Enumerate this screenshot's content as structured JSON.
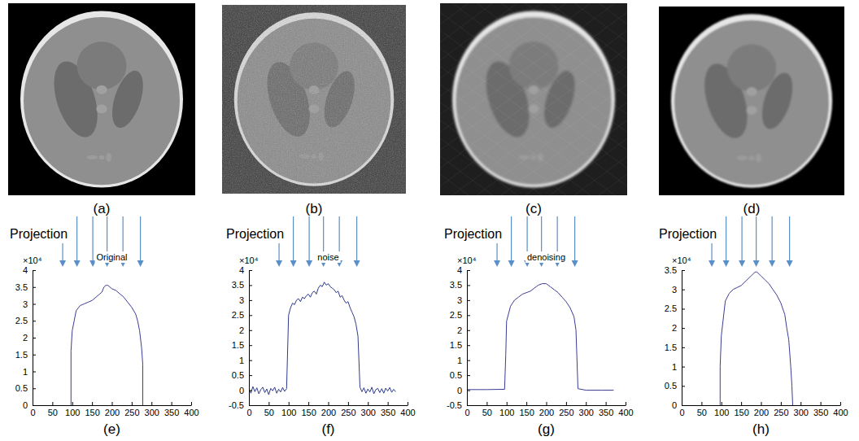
{
  "images": [
    {
      "label": "(a)"
    },
    {
      "label": "(b)"
    },
    {
      "label": "(c)"
    },
    {
      "label": "(d)"
    }
  ],
  "chart_data": [
    {
      "type": "line",
      "title": "Original",
      "caption": "(e)",
      "annotations": [
        "Projection",
        "×10⁴"
      ],
      "x": [
        97,
        97,
        100,
        110,
        120,
        130,
        140,
        150,
        160,
        170,
        175,
        180,
        185,
        190,
        195,
        200,
        210,
        220,
        230,
        240,
        250,
        260,
        265,
        270,
        275,
        278,
        278
      ],
      "values": [
        0,
        1.6,
        2.2,
        2.8,
        2.95,
        3.0,
        3.05,
        3.1,
        3.2,
        3.3,
        3.35,
        3.5,
        3.55,
        3.55,
        3.5,
        3.45,
        3.4,
        3.3,
        3.2,
        3.05,
        2.9,
        2.7,
        2.5,
        2.2,
        1.7,
        1.2,
        0
      ],
      "color": "#3c3c96",
      "xlim": [
        0,
        400
      ],
      "xticks": [
        0,
        50,
        100,
        150,
        200,
        250,
        300,
        350,
        400
      ],
      "ylim": [
        0,
        4
      ],
      "yticks": [
        0,
        0.5,
        1,
        1.5,
        2,
        2.5,
        3,
        3.5,
        4
      ]
    },
    {
      "type": "line",
      "title": "noise",
      "caption": "(f)",
      "annotations": [
        "Projection",
        "×10⁴"
      ],
      "x": [
        0,
        5,
        10,
        15,
        20,
        25,
        30,
        35,
        40,
        45,
        50,
        55,
        60,
        65,
        70,
        75,
        80,
        85,
        90,
        95,
        100,
        105,
        110,
        115,
        120,
        125,
        130,
        135,
        140,
        145,
        150,
        155,
        160,
        165,
        170,
        175,
        180,
        185,
        190,
        195,
        200,
        205,
        210,
        215,
        220,
        225,
        230,
        235,
        240,
        245,
        250,
        255,
        260,
        265,
        270,
        275,
        280,
        285,
        290,
        295,
        300,
        305,
        310,
        315,
        320,
        325,
        330,
        335,
        340,
        345,
        350,
        355,
        360,
        365,
        370
      ],
      "values": [
        0.05,
        -0.1,
        0.12,
        -0.05,
        0.08,
        -0.12,
        0.02,
        0.1,
        -0.08,
        0.04,
        -0.15,
        0.06,
        -0.02,
        0.1,
        -0.1,
        0.03,
        -0.06,
        0.09,
        -0.04,
        0.05,
        2.5,
        2.75,
        2.9,
        2.85,
        3.0,
        3.05,
        2.95,
        3.1,
        3.05,
        3.15,
        3.2,
        3.1,
        3.25,
        3.3,
        3.2,
        3.4,
        3.5,
        3.45,
        3.6,
        3.5,
        3.55,
        3.45,
        3.4,
        3.35,
        3.25,
        3.3,
        3.1,
        3.15,
        3.0,
        2.9,
        2.95,
        2.75,
        2.6,
        2.45,
        2.2,
        1.8,
        0.1,
        -0.05,
        0.08,
        -0.1,
        0.04,
        -0.06,
        0.1,
        -0.12,
        0.02,
        0.06,
        -0.08,
        0.05,
        -0.1,
        0.07,
        -0.03,
        0.09,
        -0.07,
        0.03,
        -0.05
      ],
      "color": "#2e3a8c",
      "xlim": [
        0,
        400
      ],
      "xticks": [
        0,
        50,
        100,
        150,
        200,
        250,
        300,
        350,
        400
      ],
      "ylim": [
        -0.5,
        4
      ],
      "yticks": [
        -0.5,
        0,
        0.5,
        1,
        1.5,
        2,
        2.5,
        3,
        3.5,
        4
      ]
    },
    {
      "type": "line",
      "title": "denoising",
      "caption": "(g)",
      "annotations": [
        "Projection",
        "×10⁴"
      ],
      "x": [
        0,
        50,
        95,
        98,
        100,
        110,
        120,
        130,
        140,
        150,
        160,
        170,
        180,
        190,
        200,
        210,
        220,
        230,
        240,
        250,
        260,
        270,
        275,
        280,
        300,
        340,
        370
      ],
      "values": [
        0.02,
        0.02,
        0.03,
        1.2,
        2.3,
        2.8,
        3.0,
        3.1,
        3.2,
        3.25,
        3.3,
        3.4,
        3.5,
        3.55,
        3.55,
        3.45,
        3.35,
        3.25,
        3.1,
        2.95,
        2.75,
        2.45,
        2.0,
        0.05,
        0,
        0,
        0
      ],
      "color": "#3c3c96",
      "xlim": [
        0,
        400
      ],
      "xticks": [
        0,
        50,
        100,
        150,
        200,
        250,
        300,
        350,
        400
      ],
      "ylim": [
        -0.5,
        4
      ],
      "yticks": [
        -0.5,
        0,
        0.5,
        1,
        1.5,
        2,
        2.5,
        3,
        3.5,
        4
      ]
    },
    {
      "type": "line",
      "caption": "(h)",
      "annotations": [
        "Projection",
        "×10⁴"
      ],
      "x": [
        97,
        97,
        100,
        110,
        120,
        130,
        140,
        150,
        160,
        170,
        175,
        180,
        185,
        190,
        195,
        200,
        210,
        220,
        230,
        240,
        250,
        260,
        265,
        270,
        275,
        278,
        280
      ],
      "values": [
        0,
        1.0,
        1.8,
        2.7,
        2.9,
        3.0,
        3.05,
        3.1,
        3.2,
        3.3,
        3.35,
        3.4,
        3.45,
        3.45,
        3.4,
        3.35,
        3.25,
        3.15,
        3.0,
        2.85,
        2.65,
        2.35,
        2.0,
        1.7,
        1.0,
        0.5,
        0
      ],
      "color": "#3c3c96",
      "xlim": [
        0,
        400
      ],
      "xticks": [
        0,
        50,
        100,
        150,
        200,
        250,
        300,
        350,
        400
      ],
      "ylim": [
        0,
        3.5
      ],
      "yticks": [
        0,
        0.5,
        1,
        1.5,
        2,
        2.5,
        3,
        3.5
      ]
    }
  ]
}
